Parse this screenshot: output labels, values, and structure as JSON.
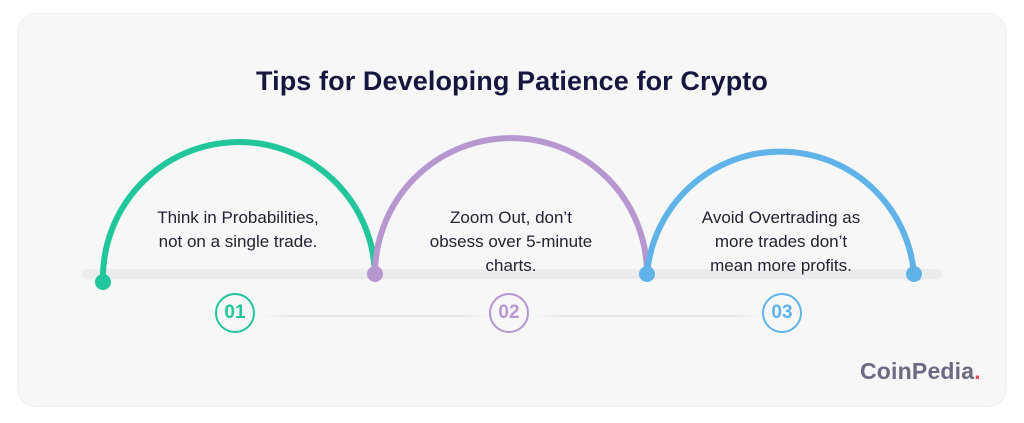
{
  "title": "Tips for Developing Patience for Crypto",
  "colors": {
    "step1": "#21c69b",
    "step2": "#b697d0",
    "step3": "#5fb3e8",
    "title": "#16163f",
    "logo": "#6b6a82",
    "logo_dot": "#e64d56"
  },
  "steps": [
    {
      "number": "01",
      "lines": [
        "Think in Probabilities,",
        "not on a single trade."
      ]
    },
    {
      "number": "02",
      "lines": [
        "Zoom Out, don’t",
        "obsess over 5-minute",
        "charts."
      ]
    },
    {
      "number": "03",
      "lines": [
        "Avoid Overtrading as",
        "more trades don’t",
        "mean more profits."
      ]
    }
  ],
  "logo": {
    "text": "CoinPedia",
    "dot": "."
  }
}
